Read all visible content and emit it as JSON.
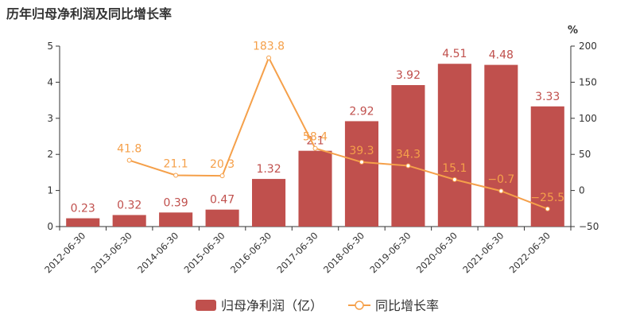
{
  "title": "历年归母净利润及同比增长率",
  "chart_data": {
    "type": "bar",
    "title": "历年归母净利润及同比增长率",
    "categories": [
      "2012-06-30",
      "2013-06-30",
      "2014-06-30",
      "2015-06-30",
      "2016-06-30",
      "2017-06-30",
      "2018-06-30",
      "2019-06-30",
      "2020-06-30",
      "2021-06-30",
      "2022-06-30"
    ],
    "series": [
      {
        "name": "归母净利润（亿）",
        "type": "bar",
        "axis": "left",
        "color": "#c0504d",
        "values": [
          0.23,
          0.32,
          0.39,
          0.47,
          1.32,
          2.1,
          2.92,
          3.92,
          4.51,
          4.48,
          3.33
        ],
        "labels": [
          "0.23",
          "0.32",
          "0.39",
          "0.47",
          "1.32",
          "2.1",
          "2.92",
          "3.92",
          "4.51",
          "4.48",
          "3.33"
        ]
      },
      {
        "name": "同比增长率",
        "type": "line",
        "axis": "right",
        "color": "#f5a04a",
        "values": [
          null,
          41.8,
          21.1,
          20.3,
          183.8,
          58.4,
          39.3,
          34.3,
          15.1,
          -0.7,
          -25.5
        ],
        "labels": [
          "",
          "41.8",
          "21.1",
          "20.3",
          "183.8",
          "58.4",
          "39.3",
          "34.3",
          "15.1",
          "−0.7",
          "−25.5"
        ]
      }
    ],
    "y_left": {
      "ylim": [
        0,
        5
      ],
      "ticks": [
        "0",
        "1",
        "2",
        "3",
        "4",
        "5"
      ]
    },
    "y_right": {
      "ylim": [
        -50,
        200
      ],
      "unit": "%",
      "ticks": [
        "−50",
        "0",
        "50",
        "100",
        "150",
        "200"
      ]
    },
    "legend": "bottom-center",
    "grid": false
  }
}
